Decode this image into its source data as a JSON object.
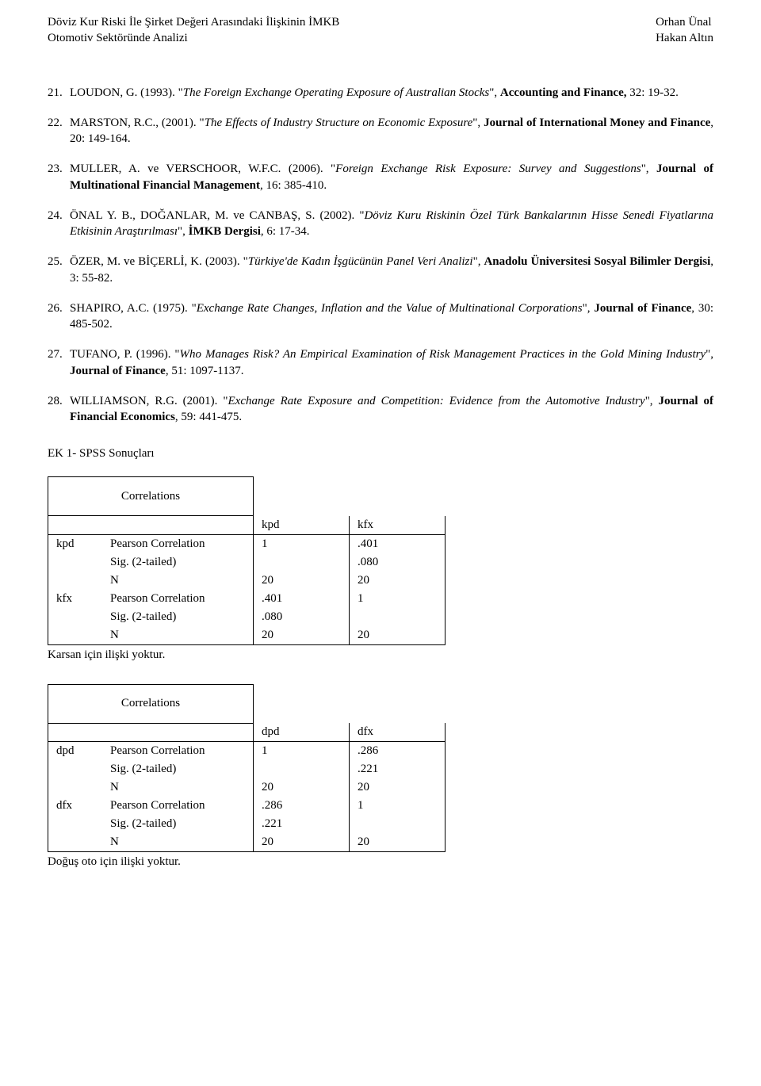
{
  "header": {
    "left_line1": "Döviz Kur Riski İle Şirket Değeri Arasındaki İlişkinin İMKB",
    "left_line2": "Otomotiv Sektöründe Analizi",
    "right_line1": "Orhan Ünal",
    "right_line2": "Hakan Altın"
  },
  "refs": [
    {
      "num": "21.",
      "pre": "LOUDON, G. (1993). \"",
      "italic": "The Foreign Exchange Operating Exposure of Australian Stocks",
      "mid": "\", ",
      "bold": "Accounting and Finance,",
      "post": " 32: 19-32."
    },
    {
      "num": "22.",
      "pre": "MARSTON, R.C., (2001). \"",
      "italic": "The Effects of Industry Structure on Economic Exposure",
      "mid": "\", ",
      "bold": "Journal of International Money and Finance",
      "post": ", 20: 149-164."
    },
    {
      "num": "23.",
      "pre": "MULLER, A. ve VERSCHOOR, W.F.C. (2006). \"",
      "italic": "Foreign Exchange Risk Exposure: Survey and Suggestions",
      "mid": "\", ",
      "bold": "Journal of Multinational Financial Management",
      "post": ", 16: 385-410."
    },
    {
      "num": "24.",
      "pre": "ÖNAL Y. B., DOĞANLAR, M. ve CANBAŞ, S. (2002). \"",
      "italic": "Döviz Kuru Riskinin Özel Türk Bankalarının Hisse Senedi Fiyatlarına Etkisinin Araştırılması",
      "mid": "\", ",
      "bold": "İMKB Dergisi",
      "post": ", 6: 17-34."
    },
    {
      "num": "25.",
      "pre": "ÖZER, M. ve BİÇERLİ, K. (2003). \"",
      "italic": "Türkiye'de Kadın İşgücünün Panel Veri Analizi",
      "mid": "\", ",
      "bold": "Anadolu Üniversitesi Sosyal Bilimler Dergisi",
      "post": ", 3: 55-82."
    },
    {
      "num": "26.",
      "pre": "SHAPIRO, A.C. (1975). \"",
      "italic": "Exchange Rate Changes, Inflation and the Value of Multinational Corporations",
      "mid": "\", ",
      "bold": "Journal of Finance",
      "post": ", 30: 485-502."
    },
    {
      "num": "27.",
      "pre": "TUFANO, P. (1996). \"",
      "italic": "Who Manages Risk? An Empirical Examination of Risk Management Practices in the Gold Mining Industry",
      "mid": "\", ",
      "bold": "Journal of Finance",
      "post": ", 51: 1097-1137."
    },
    {
      "num": "28.",
      "pre": "WILLIAMSON, R.G. (2001). \"",
      "italic": "Exchange Rate Exposure and Competition: Evidence from the Automotive Industry",
      "mid": "\", ",
      "bold": "Journal of Financial Economics",
      "post": ", 59: 441-475."
    }
  ],
  "appendix_title": "EK 1- SPSS Sonuçları",
  "tables": [
    {
      "title": "Correlations",
      "col_vars": [
        "kpd",
        "kfx"
      ],
      "row_vars": [
        "kpd",
        "kfx"
      ],
      "stats": [
        "Pearson Correlation",
        "Sig. (2-tailed)",
        "N"
      ],
      "values": [
        [
          "1",
          ".401"
        ],
        [
          "",
          ".080"
        ],
        [
          "20",
          "20"
        ],
        [
          ".401",
          "1"
        ],
        [
          ".080",
          ""
        ],
        [
          "20",
          "20"
        ]
      ],
      "note": "Karsan için ilişki yoktur."
    },
    {
      "title": "Correlations",
      "col_vars": [
        "dpd",
        "dfx"
      ],
      "row_vars": [
        "dpd",
        "dfx"
      ],
      "stats": [
        "Pearson Correlation",
        "Sig. (2-tailed)",
        "N"
      ],
      "values": [
        [
          "1",
          ".286"
        ],
        [
          "",
          ".221"
        ],
        [
          "20",
          "20"
        ],
        [
          ".286",
          "1"
        ],
        [
          ".221",
          ""
        ],
        [
          "20",
          "20"
        ]
      ],
      "note": "Doğuş oto için ilişki yoktur."
    }
  ]
}
